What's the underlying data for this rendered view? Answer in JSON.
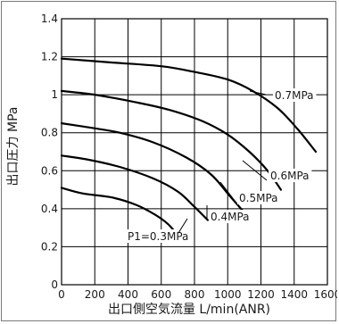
{
  "chart_data": {
    "type": "line",
    "title": "",
    "xlabel": "出口側空気流量 L/min(ANR)",
    "ylabel": "出口圧力 MPa",
    "xlim": [
      0,
      1600
    ],
    "ylim": [
      0,
      1.4
    ],
    "x_ticks": [
      "0",
      "200",
      "400",
      "600",
      "800",
      "1000",
      "1200",
      "1400",
      "1600"
    ],
    "y_ticks": [
      "0",
      "0.2",
      "0.4",
      "0.6",
      "0.8",
      "1",
      "1.2",
      "1.4"
    ],
    "grid": true,
    "legend": "none",
    "line_color": "#000000",
    "series": [
      {
        "name": "0.7MPa",
        "label_text": "0.7MPa",
        "x": [
          0,
          300,
          600,
          800,
          1000,
          1150,
          1300,
          1420,
          1530
        ],
        "y": [
          1.19,
          1.17,
          1.15,
          1.12,
          1.08,
          1.02,
          0.93,
          0.82,
          0.7
        ]
      },
      {
        "name": "0.6MPa",
        "label_text": "0.6MPa",
        "x": [
          0,
          200,
          450,
          650,
          850,
          1000,
          1130,
          1240,
          1320
        ],
        "y": [
          1.02,
          1.0,
          0.96,
          0.92,
          0.86,
          0.79,
          0.7,
          0.6,
          0.5
        ]
      },
      {
        "name": "0.5MPa",
        "label_text": "0.5MPa",
        "x": [
          0,
          150,
          350,
          550,
          750,
          900,
          1010,
          1100
        ],
        "y": [
          0.85,
          0.83,
          0.8,
          0.75,
          0.67,
          0.58,
          0.47,
          0.38
        ]
      },
      {
        "name": "0.4MPa",
        "label_text": "0.4MPa",
        "x": [
          0,
          150,
          350,
          550,
          700,
          800,
          880
        ],
        "y": [
          0.68,
          0.66,
          0.62,
          0.56,
          0.49,
          0.41,
          0.34
        ]
      },
      {
        "name": "P1=0.3MPa",
        "label_text": "P1=0.3MPa",
        "x": [
          0,
          130,
          300,
          450,
          560,
          640,
          690
        ],
        "y": [
          0.51,
          0.48,
          0.46,
          0.42,
          0.37,
          0.32,
          0.27
        ]
      }
    ]
  }
}
